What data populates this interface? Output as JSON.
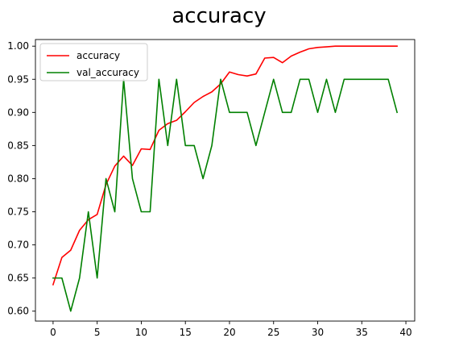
{
  "chart_data": {
    "type": "line",
    "title": "accuracy",
    "xlabel": "",
    "ylabel": "",
    "xlim": [
      -2,
      41
    ],
    "ylim": [
      0.585,
      1.01
    ],
    "xticks": [
      0,
      5,
      10,
      15,
      20,
      25,
      30,
      35,
      40
    ],
    "yticks": [
      0.6,
      0.65,
      0.7,
      0.75,
      0.8,
      0.85,
      0.9,
      0.95,
      1.0
    ],
    "grid": false,
    "legend_position": "top-left",
    "x": [
      0,
      1,
      2,
      3,
      4,
      5,
      6,
      7,
      8,
      9,
      10,
      11,
      12,
      13,
      14,
      15,
      16,
      17,
      18,
      19,
      20,
      21,
      22,
      23,
      24,
      25,
      26,
      27,
      28,
      29,
      30,
      31,
      32,
      33,
      34,
      35,
      36,
      37,
      38,
      39
    ],
    "series": [
      {
        "name": "accuracy",
        "color": "#ff0000",
        "values": [
          0.64,
          0.681,
          0.692,
          0.722,
          0.738,
          0.746,
          0.791,
          0.819,
          0.834,
          0.82,
          0.845,
          0.844,
          0.873,
          0.883,
          0.888,
          0.901,
          0.915,
          0.924,
          0.931,
          0.943,
          0.961,
          0.957,
          0.955,
          0.958,
          0.982,
          0.983,
          0.975,
          0.985,
          0.991,
          0.996,
          0.998,
          0.999,
          1.0,
          1.0,
          1.0,
          1.0,
          1.0,
          1.0,
          1.0,
          1.0
        ]
      },
      {
        "name": "val_accuracy",
        "color": "#008000",
        "values": [
          0.65,
          0.65,
          0.6,
          0.65,
          0.75,
          0.65,
          0.8,
          0.75,
          0.95,
          0.8,
          0.75,
          0.75,
          0.95,
          0.85,
          0.95,
          0.85,
          0.85,
          0.8,
          0.85,
          0.95,
          0.9,
          0.9,
          0.9,
          0.85,
          0.9,
          0.95,
          0.9,
          0.9,
          0.95,
          0.95,
          0.9,
          0.95,
          0.9,
          0.95,
          0.95,
          0.95,
          0.95,
          0.95,
          0.95,
          0.9
        ]
      }
    ]
  }
}
